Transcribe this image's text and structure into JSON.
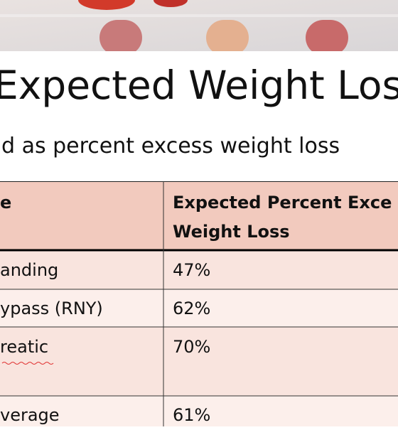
{
  "slide": {
    "title": "Expected Weight Los",
    "subtitle": "d as percent excess weight loss",
    "table": {
      "header": [
        "e",
        "Expected Percent Exce\nWeight Loss"
      ],
      "rows": [
        [
          "anding",
          "47%"
        ],
        [
          "ypass (RNY)",
          "62%"
        ],
        [
          "reatic",
          "70%"
        ],
        [
          "verage",
          "61%"
        ]
      ]
    }
  }
}
